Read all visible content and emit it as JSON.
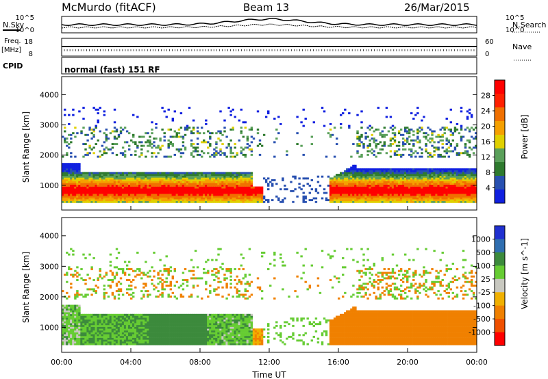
{
  "header": {
    "station": "McMurdo (fitACF)",
    "beam": "Beam 13",
    "date": "26/Mar/2015"
  },
  "strip": {
    "nsky_label": "N.Sky",
    "nsearch_label": "N.Search",
    "noise_ticks": [
      "10^5",
      "10^0"
    ],
    "freq_label_1": "Freq.",
    "freq_label_2": "[MHz]",
    "freq_ticks": [
      "18",
      "8"
    ],
    "nave_label": "Nave",
    "nave_ticks": [
      "60",
      "0"
    ],
    "cpid_label": "CPID",
    "cpid_text": "normal (fast) 151 RF"
  },
  "chart_data": [
    {
      "type": "heatmap",
      "title": "",
      "ylabel": "Slant Range [km]",
      "xlabel": "",
      "ylim": [
        180,
        4600
      ],
      "yticks": [
        1000,
        2000,
        3000,
        4000
      ],
      "colorbar_label": "Power [dB]",
      "colorbar_ticks": [
        "28",
        "24",
        "20",
        "16",
        "12",
        "8",
        "4"
      ],
      "colors": [
        "#1020e0",
        "#2850b0",
        "#2e7a2e",
        "#5aa05a",
        "#e0d000",
        "#f5a000",
        "#f07000",
        "#ff2000",
        "#ff0000"
      ]
    },
    {
      "type": "heatmap",
      "title": "",
      "ylabel": "Slant Range [km]",
      "xlabel": "Time UT",
      "ylim": [
        180,
        4600
      ],
      "yticks": [
        1000,
        2000,
        3000,
        4000
      ],
      "xticks": [
        "00:00",
        "04:00",
        "08:00",
        "12:00",
        "16:00",
        "20:00",
        "00:00"
      ],
      "colorbar_label": "Velocity [m s^-1]",
      "colorbar_ticks": [
        "1000",
        "500",
        "100",
        "25",
        "-25",
        "-100",
        "-500",
        "-1000"
      ],
      "colors": [
        "#2030d0",
        "#2f6eb0",
        "#3c8a3c",
        "#66cc33",
        "#c8c8c0",
        "#f0b000",
        "#f08000",
        "#f05000",
        "#ff0000"
      ]
    }
  ]
}
